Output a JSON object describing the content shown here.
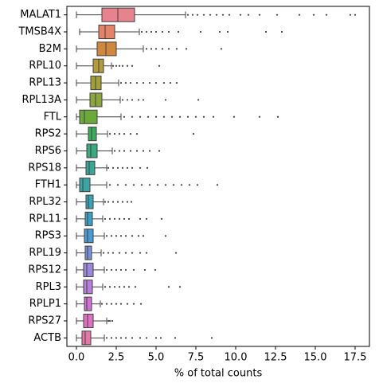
{
  "chart_data": {
    "type": "box",
    "orientation": "horizontal",
    "x_label": "% of total counts",
    "xlim": [
      -0.6,
      18.4
    ],
    "xticks": [
      {
        "value": 0,
        "label": "0.0"
      },
      {
        "value": 2.5,
        "label": "2.5"
      },
      {
        "value": 5,
        "label": "5.0"
      },
      {
        "value": 7.5,
        "label": "7.5"
      },
      {
        "value": 10,
        "label": "10.0"
      },
      {
        "value": 12.5,
        "label": "12.5"
      },
      {
        "value": 15,
        "label": "15.0"
      },
      {
        "value": 17.5,
        "label": "17.5"
      }
    ],
    "boxes": [
      {
        "name": "MALAT1",
        "color": "#e7828f",
        "whisker_low": 0,
        "q1": 1.6,
        "median": 2.6,
        "q3": 3.65,
        "whisker_high": 6.85,
        "outliers": [
          7.0,
          7.3,
          7.6,
          8.0,
          8.4,
          8.8,
          9.2,
          9.6,
          10.3,
          10.8,
          11.5,
          12.6,
          14.0,
          14.9,
          15.7,
          17.2,
          17.5
        ]
      },
      {
        "name": "TMSB4X",
        "color": "#e38468",
        "whisker_low": 0.2,
        "q1": 1.4,
        "median": 1.8,
        "q3": 2.4,
        "whisker_high": 3.95,
        "outliers": [
          4.1,
          4.4,
          4.7,
          5.0,
          5.4,
          5.8,
          6.4,
          7.8,
          9.0,
          9.5,
          11.9,
          12.9
        ]
      },
      {
        "name": "B2M",
        "color": "#d0883f",
        "whisker_low": 0,
        "q1": 1.3,
        "median": 1.85,
        "q3": 2.5,
        "whisker_high": 4.2,
        "outliers": [
          4.4,
          4.7,
          5.0,
          5.4,
          5.8,
          6.3,
          6.9,
          9.1
        ]
      },
      {
        "name": "RPL10",
        "color": "#b59a3c",
        "whisker_low": 0,
        "q1": 1.05,
        "median": 1.4,
        "q3": 1.7,
        "whisker_high": 2.2,
        "outliers": [
          2.3,
          2.5,
          2.7,
          2.9,
          3.2,
          3.5,
          5.2
        ]
      },
      {
        "name": "RPL13",
        "color": "#a1a03b",
        "whisker_low": 0,
        "q1": 0.9,
        "median": 1.2,
        "q3": 1.55,
        "whisker_high": 2.65,
        "outliers": [
          2.8,
          3.1,
          3.4,
          3.8,
          4.2,
          4.6,
          5.0,
          5.5,
          5.9,
          6.3
        ]
      },
      {
        "name": "RPL13A",
        "color": "#8da63c",
        "whisker_low": 0,
        "q1": 0.85,
        "median": 1.2,
        "q3": 1.6,
        "whisker_high": 2.75,
        "outliers": [
          2.9,
          3.2,
          3.5,
          3.9,
          4.2,
          5.6,
          7.65
        ]
      },
      {
        "name": "FTL",
        "color": "#6ba93c",
        "whisker_low": 0,
        "q1": 0.2,
        "median": 0.5,
        "q3": 1.3,
        "whisker_high": 2.8,
        "outliers": [
          3.0,
          3.5,
          4.0,
          4.5,
          5.0,
          5.5,
          6.0,
          6.5,
          7.0,
          7.5,
          8.0,
          8.6,
          9.9,
          11.5,
          12.65
        ]
      },
      {
        "name": "RPS2",
        "color": "#3cac5c",
        "whisker_low": 0,
        "q1": 0.75,
        "median": 0.95,
        "q3": 1.25,
        "whisker_high": 1.95,
        "outliers": [
          2.1,
          2.4,
          2.7,
          3.0,
          3.4,
          3.8,
          7.35
        ]
      },
      {
        "name": "RPS6",
        "color": "#3ba97f",
        "whisker_low": 0,
        "q1": 0.65,
        "median": 0.9,
        "q3": 1.3,
        "whisker_high": 2.25,
        "outliers": [
          2.4,
          2.7,
          3.0,
          3.4,
          3.8,
          4.2,
          4.6,
          5.2
        ]
      },
      {
        "name": "RPS18",
        "color": "#3aa795",
        "whisker_low": 0,
        "q1": 0.6,
        "median": 0.8,
        "q3": 1.15,
        "whisker_high": 1.9,
        "outliers": [
          2.0,
          2.3,
          2.6,
          2.9,
          3.2,
          3.5,
          4.0,
          4.45
        ]
      },
      {
        "name": "FTH1",
        "color": "#3ba4a5",
        "whisker_low": 0,
        "q1": 0.2,
        "median": 0.4,
        "q3": 0.85,
        "whisker_high": 1.9,
        "outliers": [
          2.1,
          2.6,
          3.1,
          3.6,
          4.1,
          4.6,
          5.1,
          5.6,
          6.1,
          6.6,
          7.1,
          7.6,
          8.85
        ]
      },
      {
        "name": "RPL32",
        "color": "#3ca2b3",
        "whisker_low": 0,
        "q1": 0.6,
        "median": 0.75,
        "q3": 1.05,
        "whisker_high": 1.7,
        "outliers": [
          1.8,
          2.0,
          2.3,
          2.6,
          2.9,
          3.2,
          3.45
        ]
      },
      {
        "name": "RPL11",
        "color": "#3d9fc3",
        "whisker_low": 0,
        "q1": 0.55,
        "median": 0.7,
        "q3": 1.0,
        "whisker_high": 1.65,
        "outliers": [
          1.8,
          2.1,
          2.4,
          2.7,
          3.0,
          3.3,
          4.0,
          4.4,
          5.35
        ]
      },
      {
        "name": "RPS3",
        "color": "#4a9ad6",
        "whisker_low": 0,
        "q1": 0.5,
        "median": 0.7,
        "q3": 1.05,
        "whisker_high": 1.75,
        "outliers": [
          1.9,
          2.2,
          2.5,
          2.8,
          3.1,
          3.5,
          3.9,
          4.2,
          5.6
        ]
      },
      {
        "name": "RPL19",
        "color": "#7b91dc",
        "whisker_low": 0,
        "q1": 0.55,
        "median": 0.7,
        "q3": 0.95,
        "whisker_high": 1.55,
        "outliers": [
          1.7,
          2.0,
          2.3,
          2.7,
          3.1,
          3.5,
          4.0,
          4.4,
          6.25
        ]
      },
      {
        "name": "RPS12",
        "color": "#9c89dc",
        "whisker_low": 0,
        "q1": 0.45,
        "median": 0.65,
        "q3": 1.05,
        "whisker_high": 1.75,
        "outliers": [
          1.9,
          2.2,
          2.5,
          2.8,
          3.1,
          3.6,
          4.3,
          4.95
        ]
      },
      {
        "name": "RPL3",
        "color": "#b77fdb",
        "whisker_low": 0,
        "q1": 0.45,
        "median": 0.65,
        "q3": 1.0,
        "whisker_high": 1.65,
        "outliers": [
          1.8,
          2.1,
          2.4,
          2.7,
          3.0,
          3.3,
          3.7,
          5.8,
          6.5
        ]
      },
      {
        "name": "RPLP1",
        "color": "#d272d6",
        "whisker_low": 0,
        "q1": 0.5,
        "median": 0.65,
        "q3": 0.95,
        "whisker_high": 1.5,
        "outliers": [
          1.6,
          1.9,
          2.2,
          2.5,
          2.8,
          3.2,
          3.6,
          4.05
        ]
      },
      {
        "name": "RPS27",
        "color": "#df72c0",
        "whisker_low": 0,
        "q1": 0.45,
        "median": 0.7,
        "q3": 1.05,
        "whisker_high": 1.9,
        "outliers": [
          2.0,
          2.1,
          2.25
        ]
      },
      {
        "name": "ACTB",
        "color": "#e578a8",
        "whisker_low": 0,
        "q1": 0.35,
        "median": 0.55,
        "q3": 0.9,
        "whisker_high": 1.75,
        "outliers": [
          1.9,
          2.2,
          2.5,
          2.8,
          3.1,
          3.5,
          4.0,
          4.4,
          5.0,
          5.3,
          6.2,
          8.5
        ]
      }
    ]
  }
}
